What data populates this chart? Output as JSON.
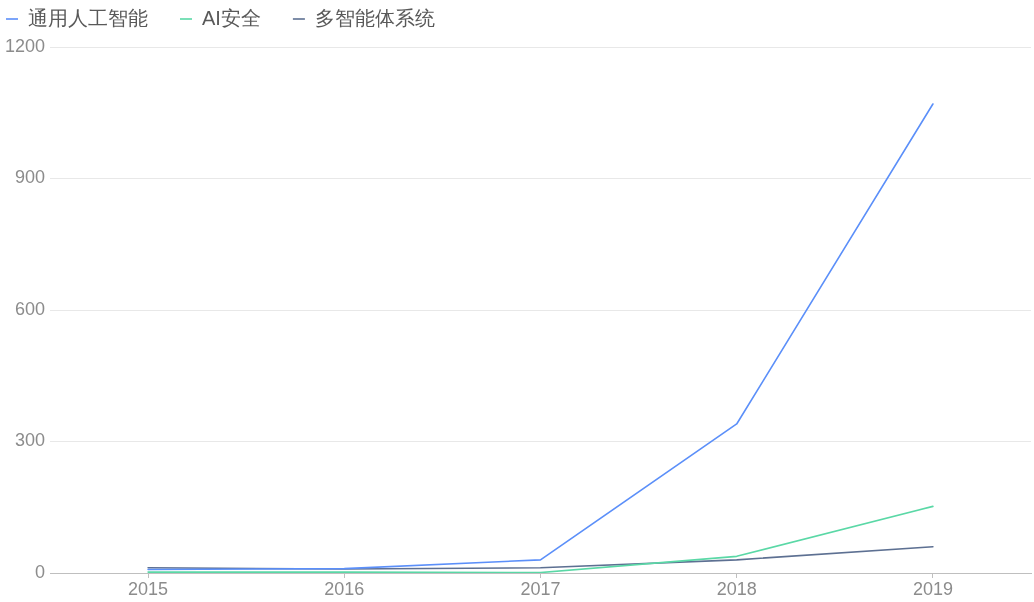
{
  "chart_data": {
    "type": "line",
    "categories": [
      "2015",
      "2016",
      "2017",
      "2018",
      "2019"
    ],
    "series": [
      {
        "name": "通用人工智能",
        "color": "#5b8ff9",
        "values": [
          8,
          10,
          30,
          340,
          1070
        ]
      },
      {
        "name": "AI安全",
        "color": "#5ad8a6",
        "values": [
          2,
          2,
          1,
          38,
          152
        ]
      },
      {
        "name": "多智能体系统",
        "color": "#5d7092",
        "values": [
          12,
          9,
          12,
          30,
          60
        ]
      }
    ],
    "ylim": [
      0,
      1200
    ],
    "yticks": [
      0,
      300,
      600,
      900,
      1200
    ],
    "grid": "y",
    "legend": "top left",
    "marker": "none"
  }
}
